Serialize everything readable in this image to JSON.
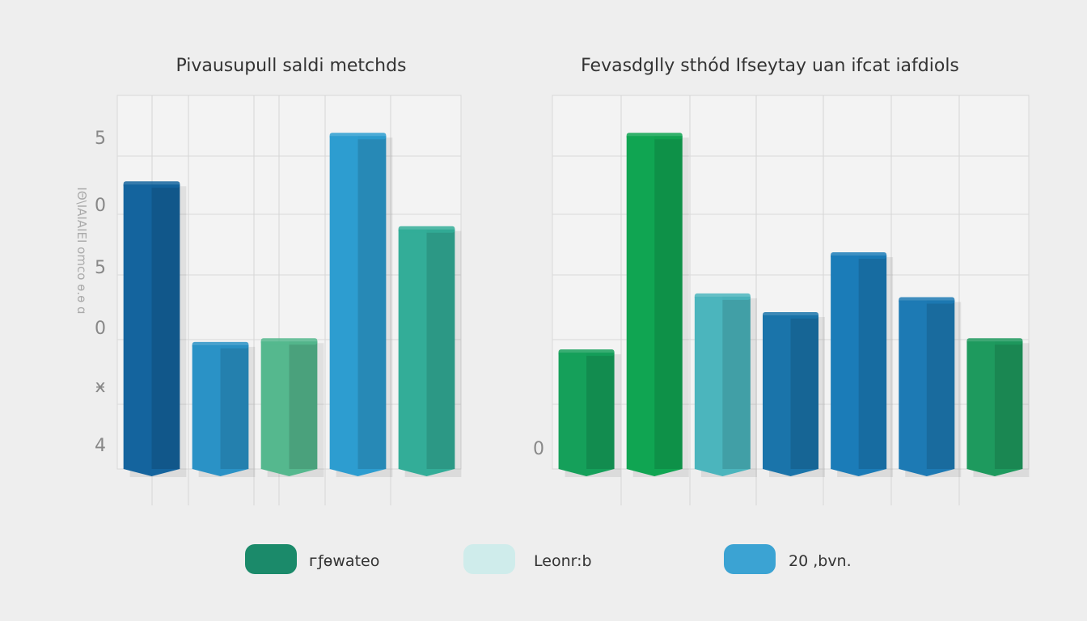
{
  "chart_data": [
    {
      "type": "bar",
      "title": "Pivausupull saldi metchds",
      "ylabel": "IΘ\\IAIAIEI omco ɵ.ɵ ɑ",
      "ytick_labels": [
        "5",
        "0",
        "5",
        "0",
        "ӿ",
        "4"
      ],
      "ylim": [
        0,
        1
      ],
      "grid": true,
      "values": [
        0.77,
        0.34,
        0.35,
        0.9,
        0.65
      ],
      "colors": [
        "#14649e",
        "#2a92c6",
        "#55b88e",
        "#2d9dd0",
        "#33ad98"
      ]
    },
    {
      "type": "bar",
      "title": "Fevasdglly sthód   Ifseytay uan ifcat iafdiols",
      "ytick_labels": [
        "0"
      ],
      "ylim": [
        0,
        1
      ],
      "grid": true,
      "values": [
        0.32,
        0.9,
        0.47,
        0.42,
        0.58,
        0.46,
        0.35
      ],
      "colors": [
        "#15a05a",
        "#10a552",
        "#4bb5bd",
        "#1a74aa",
        "#1b7cb8",
        "#1d7ab4",
        "#1e9a5e"
      ]
    }
  ],
  "legend": [
    {
      "label": "ᴦƒɵwateo",
      "color": "#1b8a6a"
    },
    {
      "label": "Leonr:b",
      "color": "#cfeceb"
    },
    {
      "label": "20 ,bvn.",
      "color": "#3ba3d3"
    }
  ]
}
